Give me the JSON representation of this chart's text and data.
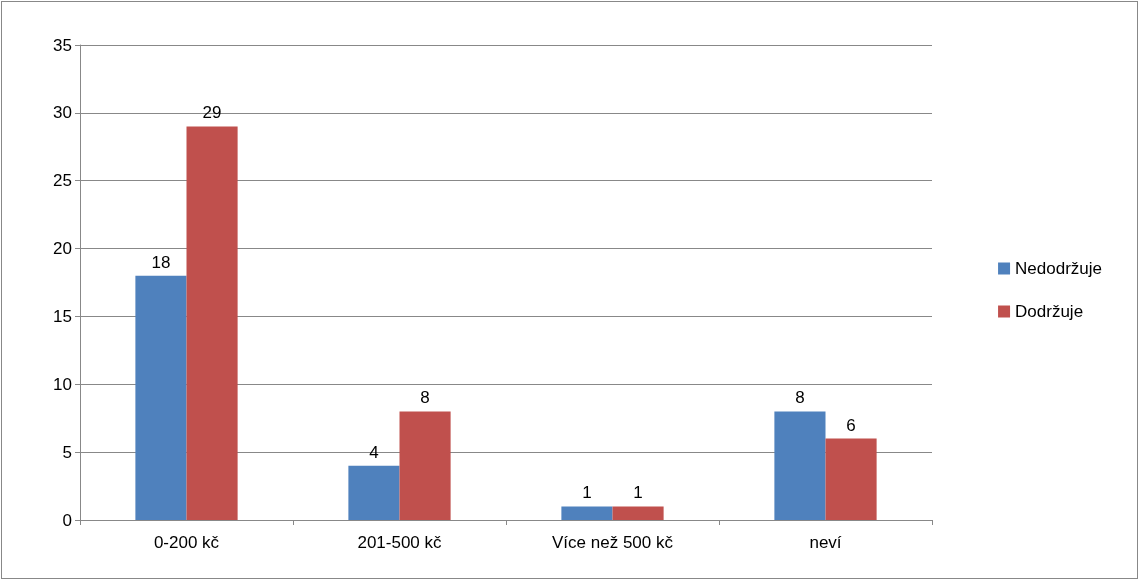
{
  "chart_data": {
    "type": "bar",
    "categories": [
      "0-200 kč",
      "201-500 kč",
      "Více než 500 kč",
      "neví"
    ],
    "series": [
      {
        "name": "Nedodržuje",
        "color": "#4f81bd",
        "values": [
          18,
          4,
          1,
          8
        ]
      },
      {
        "name": "Dodržuje",
        "color": "#c0504d",
        "values": [
          29,
          8,
          1,
          6
        ]
      }
    ],
    "ylim": [
      0,
      35
    ],
    "yticks": [
      0,
      5,
      10,
      15,
      20,
      25,
      30,
      35
    ],
    "grid": "y",
    "legend": "right",
    "data_labels": true
  }
}
